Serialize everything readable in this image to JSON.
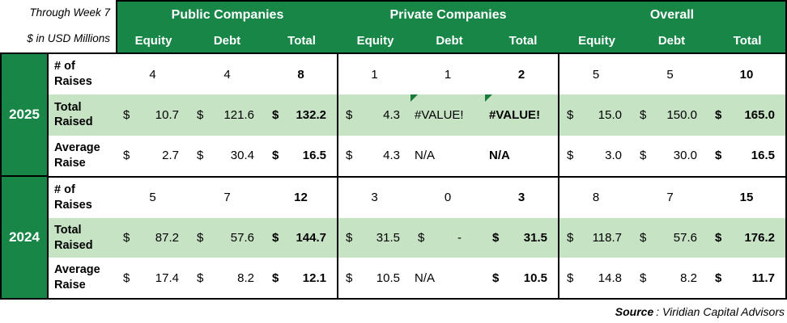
{
  "meta": {
    "line1": "Through Week 7",
    "line2": "$ in USD Millions"
  },
  "header": {
    "groups": [
      "Public Companies",
      "Private Companies",
      "Overall"
    ],
    "columns": [
      "Equity",
      "Debt",
      "Total"
    ]
  },
  "colors": {
    "header_green": "#178647",
    "highlight_green": "#C6E3C4",
    "error_indicator_green": "#1A7A3C",
    "border_black": "#000000"
  },
  "years": [
    {
      "year": "2025",
      "rows": [
        {
          "label_line1": "# of",
          "label_line2": "Raises",
          "cells": [
            {
              "v": "4"
            },
            {
              "v": "4"
            },
            {
              "v": "8"
            },
            {
              "v": "1"
            },
            {
              "v": "1"
            },
            {
              "v": "2"
            },
            {
              "v": "5"
            },
            {
              "v": "5"
            },
            {
              "v": "10"
            }
          ]
        },
        {
          "label_line1": "Total",
          "label_line2": "Raised",
          "cells": [
            {
              "d": "$",
              "v": "10.7"
            },
            {
              "d": "$",
              "v": "121.6"
            },
            {
              "d": "$",
              "v": "132.2"
            },
            {
              "d": "$",
              "v": "4.3"
            },
            {
              "v": "#VALUE!",
              "error_flag": true
            },
            {
              "v": "#VALUE!",
              "error_flag": true
            },
            {
              "d": "$",
              "v": "15.0"
            },
            {
              "d": "$",
              "v": "150.0"
            },
            {
              "d": "$",
              "v": "165.0"
            }
          ]
        },
        {
          "label_line1": "Average",
          "label_line2": "Raise",
          "cells": [
            {
              "d": "$",
              "v": "2.7"
            },
            {
              "d": "$",
              "v": "30.4"
            },
            {
              "d": "$",
              "v": "16.5"
            },
            {
              "d": "$",
              "v": "4.3"
            },
            {
              "v": "N/A"
            },
            {
              "v": "N/A"
            },
            {
              "d": "$",
              "v": "3.0"
            },
            {
              "d": "$",
              "v": "30.0"
            },
            {
              "d": "$",
              "v": "16.5"
            }
          ]
        }
      ]
    },
    {
      "year": "2024",
      "rows": [
        {
          "label_line1": "# of",
          "label_line2": "Raises",
          "cells": [
            {
              "v": "5"
            },
            {
              "v": "7"
            },
            {
              "v": "12"
            },
            {
              "v": "3"
            },
            {
              "v": "0"
            },
            {
              "v": "3"
            },
            {
              "v": "8"
            },
            {
              "v": "7"
            },
            {
              "v": "15"
            }
          ]
        },
        {
          "label_line1": "Total",
          "label_line2": "Raised",
          "cells": [
            {
              "d": "$",
              "v": "87.2"
            },
            {
              "d": "$",
              "v": "57.6"
            },
            {
              "d": "$",
              "v": "144.7"
            },
            {
              "d": "$",
              "v": "31.5"
            },
            {
              "d": "$",
              "v": "-"
            },
            {
              "d": "$",
              "v": "31.5"
            },
            {
              "d": "$",
              "v": "118.7"
            },
            {
              "d": "$",
              "v": "57.6"
            },
            {
              "d": "$",
              "v": "176.2"
            }
          ]
        },
        {
          "label_line1": "Average",
          "label_line2": "Raise",
          "cells": [
            {
              "d": "$",
              "v": "17.4"
            },
            {
              "d": "$",
              "v": "8.2"
            },
            {
              "d": "$",
              "v": "12.1"
            },
            {
              "d": "$",
              "v": "10.5"
            },
            {
              "v": "N/A"
            },
            {
              "d": "$",
              "v": "10.5"
            },
            {
              "d": "$",
              "v": "14.8"
            },
            {
              "d": "$",
              "v": "8.2"
            },
            {
              "d": "$",
              "v": "11.7"
            }
          ]
        }
      ]
    }
  ],
  "source": {
    "label": "Source",
    "text": ": Viridian Capital Advisors"
  }
}
